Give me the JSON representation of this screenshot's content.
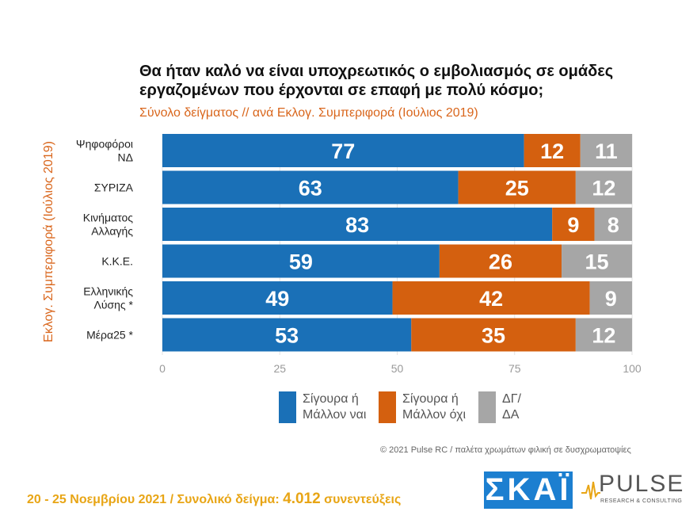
{
  "title": "Θα ήταν καλό να είναι υποχρεωτικός ο εμβολιασμός σε ομάδες εργαζομένων που έρχονται σε επαφή με πολύ κόσμο;",
  "subtitle": "Σύνολο δείγματος // ανά Εκλογ. Συμπεριφορά (Ιούλιος 2019)",
  "side_label": "Εκλογ. Συμπεριφορά (Ιούλιος 2019)",
  "colors": {
    "yes": "#1a70b7",
    "no": "#d4600f",
    "dk": "#a6a6a6",
    "accent": "#d9661c"
  },
  "chart_data": {
    "type": "bar",
    "orientation": "horizontal",
    "stacked": true,
    "categories": [
      [
        "Ψηφοφόροι",
        "ΝΔ"
      ],
      [
        "ΣΥΡΙΖΑ"
      ],
      [
        "Κινήματος",
        "Αλλαγής"
      ],
      [
        "Κ.Κ.Ε."
      ],
      [
        "Ελληνικής",
        "Λύσης *"
      ],
      [
        "Μέρα25 *"
      ]
    ],
    "series": [
      {
        "name": "Σίγουρα ή Μάλλον ναι",
        "values": [
          77,
          63,
          83,
          59,
          49,
          53
        ]
      },
      {
        "name": "Σίγουρα ή Μάλλον όχι",
        "values": [
          12,
          25,
          9,
          26,
          42,
          35
        ]
      },
      {
        "name": "ΔΓ/ ΔΑ",
        "values": [
          11,
          12,
          8,
          15,
          9,
          12
        ]
      }
    ],
    "xlim": [
      0,
      100
    ],
    "xticks": [
      0,
      25,
      50,
      75,
      100
    ],
    "legend_position": "bottom"
  },
  "legend": [
    {
      "line1": "Σίγουρα ή",
      "line2": "Μάλλον ναι"
    },
    {
      "line1": "Σίγουρα ή",
      "line2": "Μάλλον όχι"
    },
    {
      "line1": "ΔΓ/",
      "line2": "ΔΑ"
    }
  ],
  "credit": "© 2021 Pulse RC  /  παλέτα χρωμάτων φιλική σε δυσχρωματοψίες",
  "footer": {
    "dates": "20 - 25  Νοεμβρίου 2021  /  Συνολικό δείγμα:",
    "n": "4.012",
    "suffix": "συνεντεύξεις"
  },
  "logos": {
    "skai": "ΣΚΑΪ",
    "pulse": "PULSE",
    "pulse_sub": "RESEARCH & CONSULTING"
  }
}
